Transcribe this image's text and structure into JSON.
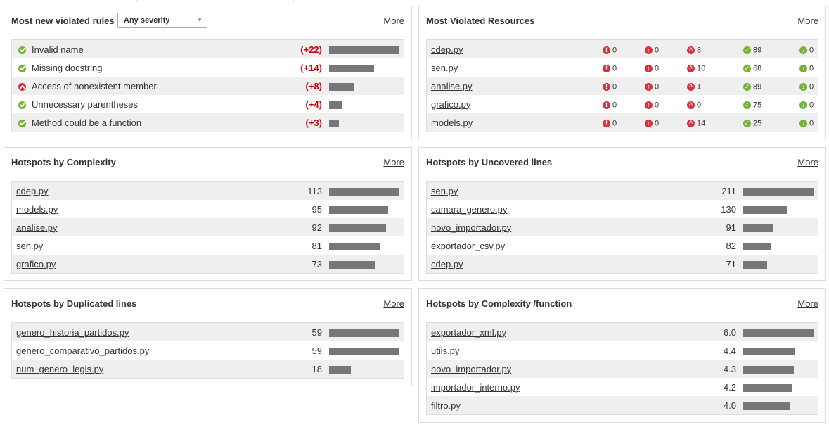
{
  "violated_rules": {
    "title": "Most new violated rules",
    "severity_select": "Any severity",
    "more": "More",
    "rows": [
      {
        "status": "green",
        "name": "Invalid name",
        "delta": "(+22)",
        "bar": 100
      },
      {
        "status": "green",
        "name": "Missing docstring",
        "delta": "(+14)",
        "bar": 64
      },
      {
        "status": "red",
        "name": "Access of nonexistent member",
        "delta": "(+8)",
        "bar": 36
      },
      {
        "status": "green",
        "name": "Unnecessary parentheses",
        "delta": "(+4)",
        "bar": 18
      },
      {
        "status": "green",
        "name": "Method could be a function",
        "delta": "(+3)",
        "bar": 14
      }
    ]
  },
  "violated_resources": {
    "title": "Most Violated Resources",
    "more": "More",
    "rows": [
      {
        "name": "cdep.py",
        "blocker": "0",
        "critical": "0",
        "major": "8",
        "minor": "89",
        "info": "0"
      },
      {
        "name": "sen.py",
        "blocker": "0",
        "critical": "0",
        "major": "10",
        "minor": "68",
        "info": "0"
      },
      {
        "name": "analise.py",
        "blocker": "0",
        "critical": "0",
        "major": "1",
        "minor": "89",
        "info": "0"
      },
      {
        "name": "grafico.py",
        "blocker": "0",
        "critical": "0",
        "major": "0",
        "minor": "75",
        "info": "0"
      },
      {
        "name": "models.py",
        "blocker": "0",
        "critical": "0",
        "major": "14",
        "minor": "25",
        "info": "0"
      }
    ]
  },
  "complexity": {
    "title": "Hotspots by Complexity",
    "more": "More",
    "rows": [
      {
        "name": "cdep.py",
        "value": "113",
        "bar": 100
      },
      {
        "name": "models.py",
        "value": "95",
        "bar": 84
      },
      {
        "name": "analise.py",
        "value": "92",
        "bar": 81
      },
      {
        "name": "sen.py",
        "value": "81",
        "bar": 72
      },
      {
        "name": "grafico.py",
        "value": "73",
        "bar": 65
      }
    ]
  },
  "uncovered": {
    "title": "Hotspots by Uncovered lines",
    "more": "More",
    "rows": [
      {
        "name": "sen.py",
        "value": "211",
        "bar": 100
      },
      {
        "name": "camara_genero.py",
        "value": "130",
        "bar": 62
      },
      {
        "name": "novo_importador.py",
        "value": "91",
        "bar": 43
      },
      {
        "name": "exportador_csv.py",
        "value": "82",
        "bar": 39
      },
      {
        "name": "cdep.py",
        "value": "71",
        "bar": 34
      }
    ]
  },
  "duplicated": {
    "title": "Hotspots by Duplicated lines",
    "more": "More",
    "rows": [
      {
        "name": "genero_historia_partidos.py",
        "value": "59",
        "bar": 100
      },
      {
        "name": "genero_comparativo_partidos.py",
        "value": "59",
        "bar": 100
      },
      {
        "name": "num_genero_legis.py",
        "value": "18",
        "bar": 31
      }
    ]
  },
  "complexity_function": {
    "title": "Hotspots by Complexity /function",
    "more": "More",
    "rows": [
      {
        "name": "exportador_xml.py",
        "value": "6.0",
        "bar": 100
      },
      {
        "name": "utils.py",
        "value": "4.4",
        "bar": 73
      },
      {
        "name": "novo_importador.py",
        "value": "4.3",
        "bar": 72
      },
      {
        "name": "importador_interno.py",
        "value": "4.2",
        "bar": 70
      },
      {
        "name": "filtro.py",
        "value": "4.0",
        "bar": 67
      }
    ]
  }
}
